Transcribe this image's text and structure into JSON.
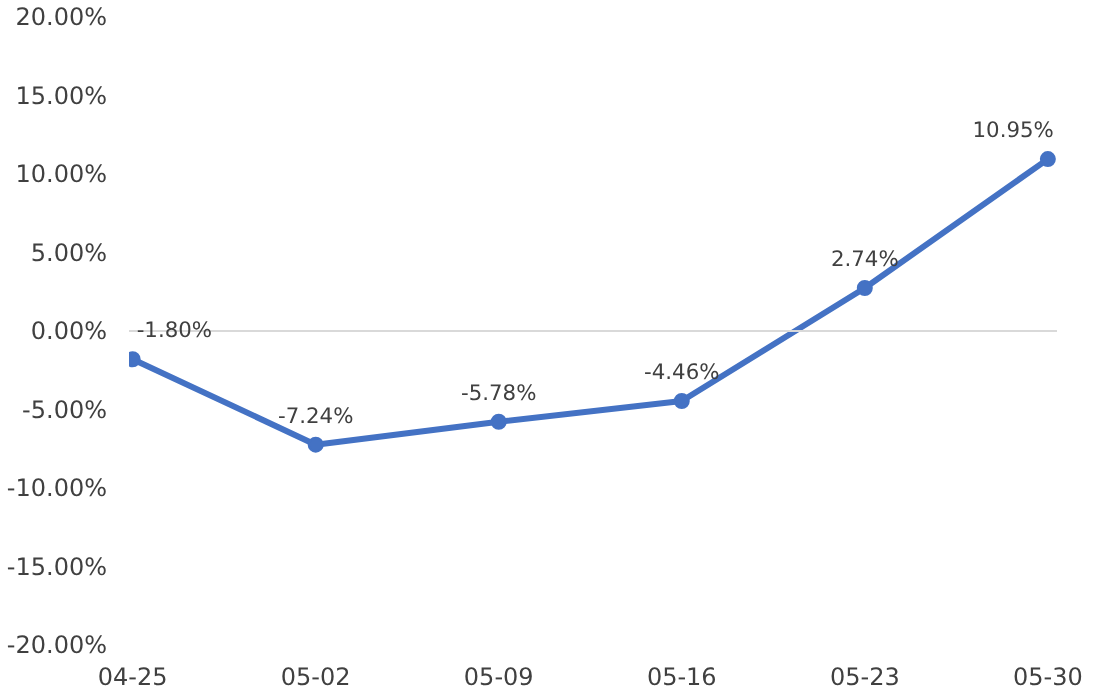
{
  "chart_data": {
    "type": "line",
    "categories": [
      "04-25",
      "05-02",
      "05-09",
      "05-16",
      "05-23",
      "05-30"
    ],
    "series": [
      {
        "color": "#4472c4",
        "values": [
          -1.8,
          -7.24,
          -5.78,
          -4.46,
          2.74,
          10.95
        ],
        "value_labels": [
          "-1.80%",
          "-7.24%",
          "-5.78%",
          "-4.46%",
          "2.74%",
          "10.95%"
        ]
      }
    ],
    "ylim": [
      -20,
      20
    ],
    "yticks": [
      {
        "value": -20,
        "label": "-20.00%"
      },
      {
        "value": -15,
        "label": "-15.00%"
      },
      {
        "value": -10,
        "label": "-10.00%"
      },
      {
        "value": -5,
        "label": "-5.00%"
      },
      {
        "value": 0,
        "label": "0.00%"
      },
      {
        "value": 5,
        "label": "5.00%"
      },
      {
        "value": 10,
        "label": "10.00%"
      },
      {
        "value": 15,
        "label": "15.00%"
      },
      {
        "value": 20,
        "label": "20.00%"
      }
    ],
    "ref_lines": [
      {
        "axis": "y",
        "value": 0,
        "color": "#d9d9d9"
      }
    ],
    "grid": false,
    "marker": "circle",
    "line_style": "solid"
  }
}
